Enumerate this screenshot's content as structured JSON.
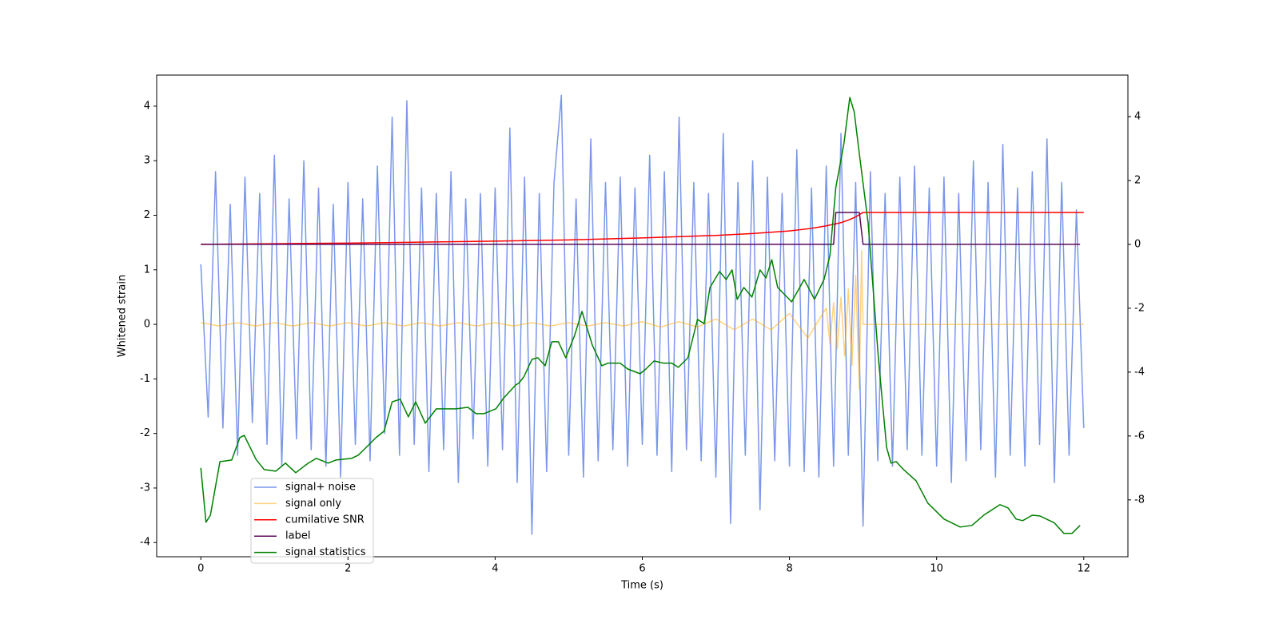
{
  "chart_data": {
    "type": "line",
    "xlabel": "Time (s)",
    "ylabel": "Whitened strain",
    "xlim": [
      -0.6,
      12.6
    ],
    "xticks": [
      0,
      2,
      4,
      6,
      8,
      10,
      12
    ],
    "ylim": [
      -4.26,
      4.57
    ],
    "yticks": [
      -4,
      -3,
      -2,
      -1,
      0,
      1,
      2,
      3,
      4
    ],
    "y2lim": [
      -9.78,
      5.3
    ],
    "y2ticks": [
      -8,
      -6,
      -4,
      -2,
      0,
      2,
      4
    ],
    "legend": "lower left",
    "series": [
      {
        "name": "signal+ noise",
        "color": "#4169e1",
        "opacity": 0.7,
        "axis": "y",
        "x": [
          0,
          0.1,
          0.2,
          0.3,
          0.4,
          0.5,
          0.6,
          0.7,
          0.8,
          0.9,
          1,
          1.1,
          1.2,
          1.3,
          1.4,
          1.5,
          1.6,
          1.7,
          1.8,
          1.9,
          2,
          2.1,
          2.2,
          2.3,
          2.4,
          2.5,
          2.6,
          2.7,
          2.8,
          2.9,
          3,
          3.1,
          3.2,
          3.3,
          3.4,
          3.5,
          3.6,
          3.7,
          3.8,
          3.9,
          4,
          4.1,
          4.2,
          4.3,
          4.4,
          4.5,
          4.6,
          4.7,
          4.8,
          4.9,
          5,
          5.1,
          5.2,
          5.3,
          5.4,
          5.5,
          5.6,
          5.7,
          5.8,
          5.9,
          6,
          6.1,
          6.2,
          6.3,
          6.4,
          6.5,
          6.6,
          6.7,
          6.8,
          6.9,
          7,
          7.1,
          7.2,
          7.3,
          7.4,
          7.5,
          7.6,
          7.7,
          7.8,
          7.9,
          8,
          8.1,
          8.2,
          8.3,
          8.4,
          8.5,
          8.6,
          8.7,
          8.8,
          8.9,
          9,
          9.1,
          9.2,
          9.3,
          9.4,
          9.5,
          9.6,
          9.7,
          9.8,
          9.9,
          10,
          10.1,
          10.2,
          10.3,
          10.4,
          10.5,
          10.6,
          10.7,
          10.8,
          10.9,
          11,
          11.1,
          11.2,
          11.3,
          11.4,
          11.5,
          11.6,
          11.7,
          11.8,
          11.9,
          12
        ],
        "values": [
          1.1,
          -1.7,
          2.8,
          -1.9,
          2.2,
          -2.4,
          2.7,
          -1.8,
          2.4,
          -2.2,
          3.1,
          -2.6,
          2.3,
          -2.1,
          3.0,
          -2.3,
          2.5,
          -2.6,
          2.2,
          -2.8,
          2.6,
          -2.2,
          2.3,
          -2.5,
          2.9,
          -2.0,
          3.8,
          -2.4,
          4.1,
          -2.2,
          2.5,
          -2.7,
          2.4,
          -2.3,
          2.8,
          -2.9,
          2.3,
          -2.1,
          2.4,
          -2.6,
          2.5,
          -2.3,
          3.6,
          -2.9,
          2.7,
          -3.85,
          2.4,
          -2.7,
          2.6,
          4.2,
          -2.4,
          2.3,
          -2.8,
          3.4,
          -2.5,
          2.6,
          -2.3,
          2.7,
          -2.6,
          2.5,
          -2.2,
          3.1,
          -2.4,
          2.8,
          -2.7,
          3.8,
          -2.3,
          2.6,
          -2.5,
          2.4,
          -2.8,
          3.5,
          -3.65,
          2.6,
          -2.4,
          3.0,
          -3.4,
          2.7,
          -2.5,
          2.4,
          -2.6,
          3.2,
          -2.7,
          2.5,
          -2.8,
          2.9,
          -2.6,
          3.5,
          -2.4,
          2.6,
          -3.7,
          2.8,
          -2.5,
          2.4,
          -2.6,
          2.7,
          -2.3,
          2.9,
          -2.4,
          2.5,
          -2.6,
          2.7,
          -2.9,
          2.4,
          -2.5,
          3.0,
          -2.3,
          2.6,
          -2.8,
          3.3,
          -2.4,
          2.5,
          -2.6,
          2.8,
          -2.2,
          3.4,
          -2.9,
          2.6,
          -2.4,
          2.1,
          -1.9
        ]
      },
      {
        "name": "signal only",
        "color": "#ffa500",
        "opacity": 0.5,
        "axis": "y",
        "x": [
          0,
          0.25,
          0.5,
          0.75,
          1,
          1.25,
          1.5,
          1.75,
          2,
          2.25,
          2.5,
          2.75,
          3,
          3.25,
          3.5,
          3.75,
          4,
          4.25,
          4.5,
          4.75,
          5,
          5.25,
          5.5,
          5.75,
          6,
          6.25,
          6.5,
          6.75,
          7,
          7.25,
          7.5,
          7.75,
          8,
          8.25,
          8.5,
          8.55,
          8.6,
          8.65,
          8.7,
          8.75,
          8.8,
          8.85,
          8.9,
          8.95,
          8.98,
          9,
          12
        ],
        "values": [
          0.03,
          -0.03,
          0.03,
          -0.03,
          0.03,
          -0.03,
          0.03,
          -0.03,
          0.03,
          -0.03,
          0.03,
          -0.03,
          0.03,
          -0.03,
          0.03,
          -0.03,
          0.03,
          -0.03,
          0.03,
          -0.03,
          0.03,
          -0.03,
          0.03,
          -0.03,
          0.05,
          -0.05,
          0.05,
          -0.05,
          0.1,
          -0.1,
          0.1,
          -0.1,
          0.2,
          -0.25,
          0.3,
          -0.35,
          0.4,
          -0.45,
          0.5,
          -0.58,
          0.65,
          -0.75,
          0.9,
          -1.2,
          1.35,
          0,
          0
        ]
      },
      {
        "name": "cumilative SNR",
        "color": "#ff0000",
        "opacity": 1,
        "axis": "y2",
        "x": [
          0,
          1,
          2,
          3,
          4,
          5,
          6,
          7,
          7.5,
          8,
          8.3,
          8.5,
          8.7,
          8.8,
          8.9,
          9,
          12
        ],
        "values": [
          0,
          0.02,
          0.04,
          0.07,
          0.1,
          0.14,
          0.2,
          0.28,
          0.34,
          0.42,
          0.5,
          0.58,
          0.68,
          0.76,
          0.86,
          1,
          1
        ]
      },
      {
        "name": "label",
        "color": "#5a0a5a",
        "opacity": 1,
        "axis": "y2",
        "x": [
          0,
          8.6,
          8.63,
          8.95,
          9.0,
          11.95
        ],
        "values": [
          0,
          0,
          1,
          1,
          0,
          0
        ]
      },
      {
        "name": "signal statistics",
        "color": "#008000",
        "opacity": 1,
        "axis": "y2",
        "x": [
          0,
          0.07,
          0.13,
          0.26,
          0.34,
          0.42,
          0.53,
          0.59,
          0.75,
          0.86,
          1.02,
          1.15,
          1.29,
          1.46,
          1.57,
          1.73,
          1.84,
          2.05,
          2.14,
          2.25,
          2.38,
          2.49,
          2.6,
          2.71,
          2.82,
          2.92,
          3.05,
          3.2,
          3.3,
          3.47,
          3.63,
          3.74,
          3.85,
          4.01,
          4.12,
          4.28,
          4.32,
          4.39,
          4.5,
          4.58,
          4.68,
          4.77,
          4.86,
          4.96,
          5.08,
          5.18,
          5.32,
          5.45,
          5.53,
          5.7,
          5.8,
          5.97,
          6.05,
          6.16,
          6.29,
          6.4,
          6.49,
          6.62,
          6.75,
          6.84,
          6.92,
          7.05,
          7.14,
          7.22,
          7.29,
          7.38,
          7.49,
          7.6,
          7.68,
          7.76,
          7.84,
          8.03,
          8.2,
          8.34,
          8.47,
          8.55,
          8.63,
          8.74,
          8.82,
          8.88,
          8.96,
          9.07,
          9.21,
          9.32,
          9.38,
          9.45,
          9.55,
          9.72,
          9.88,
          10.1,
          10.32,
          10.48,
          10.64,
          10.86,
          10.97,
          11.08,
          11.17,
          11.3,
          11.4,
          11.6,
          11.73,
          11.84,
          11.95
        ],
        "values": [
          -7.0,
          -8.7,
          -8.48,
          -6.8,
          -6.78,
          -6.75,
          -6.05,
          -5.98,
          -6.73,
          -7.05,
          -7.1,
          -6.85,
          -7.15,
          -6.85,
          -6.7,
          -6.85,
          -6.75,
          -6.7,
          -6.6,
          -6.35,
          -6.05,
          -5.85,
          -4.93,
          -4.85,
          -5.4,
          -4.93,
          -5.6,
          -5.15,
          -5.15,
          -5.15,
          -5.1,
          -5.3,
          -5.3,
          -5.15,
          -4.8,
          -4.4,
          -4.35,
          -4.15,
          -3.6,
          -3.55,
          -3.8,
          -3.05,
          -3.05,
          -3.55,
          -2.85,
          -2.1,
          -3.15,
          -3.8,
          -3.72,
          -3.72,
          -3.9,
          -4.05,
          -3.9,
          -3.65,
          -3.72,
          -3.72,
          -3.85,
          -3.55,
          -2.35,
          -2.48,
          -1.35,
          -0.85,
          -1.1,
          -0.8,
          -1.72,
          -1.35,
          -1.65,
          -0.8,
          -1.05,
          -0.48,
          -1.35,
          -1.8,
          -1.1,
          -1.72,
          -1.1,
          -0.35,
          1.78,
          3.15,
          4.6,
          4.15,
          2.65,
          0.65,
          -3.6,
          -6.35,
          -6.85,
          -6.8,
          -7.05,
          -7.4,
          -8.1,
          -8.6,
          -8.85,
          -8.8,
          -8.48,
          -8.15,
          -8.25,
          -8.6,
          -8.65,
          -8.48,
          -8.5,
          -8.72,
          -9.05,
          -9.05,
          -8.8
        ]
      }
    ]
  }
}
